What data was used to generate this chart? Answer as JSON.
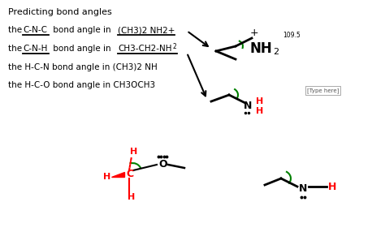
{
  "bg_color": "#ffffff",
  "title_text": "Predicting bond angles",
  "line1": "the C-N-C bond angle in (CH3)2 NH2+",
  "line2": "the C-N-H bond angle in CH3-CH2-NH",
  "line3": "the H-C-N bond angle in (CH3)2 NH",
  "line4": "the H-C-O bond angle in CH3OCH3",
  "note_text": "[Type here]",
  "angle_label": "109.5"
}
